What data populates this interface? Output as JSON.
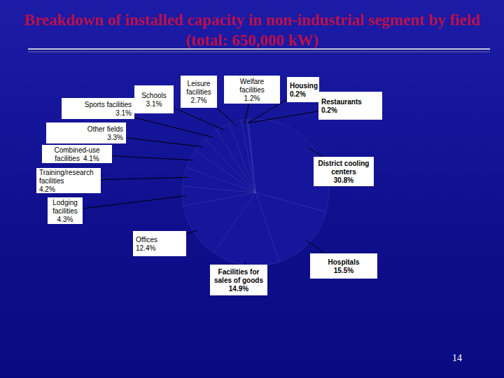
{
  "chart_data": {
    "type": "pie",
    "title": "Breakdown of installed capacity in non-industrial segment by field (total: 650,000 kW)",
    "categories": [
      "Housing",
      "Restaurants",
      "District cooling centers",
      "Hospitals",
      "Facilities for sales of goods",
      "Offices",
      "Lodging facilities",
      "Training/research facilities",
      "Combined-use facilities",
      "Other fields",
      "Sports facilities",
      "Schools",
      "Leisure facilities",
      "Welfare facilities"
    ],
    "values": [
      0.2,
      0.2,
      30.8,
      15.5,
      14.9,
      12.4,
      4.3,
      4.2,
      4.1,
      3.3,
      3.1,
      3.1,
      2.7,
      1.2
    ],
    "value_labels": [
      "0.2%",
      "0.2%",
      "30.8%",
      "15.5%",
      "14.9%",
      "12.4%",
      "4.3%",
      "4.2%",
      "4.1%",
      "3.3%",
      "3.1%",
      "3.1%",
      "2.7%",
      "1.2%"
    ],
    "data_labels": true,
    "annotations": [
      "14"
    ]
  }
}
